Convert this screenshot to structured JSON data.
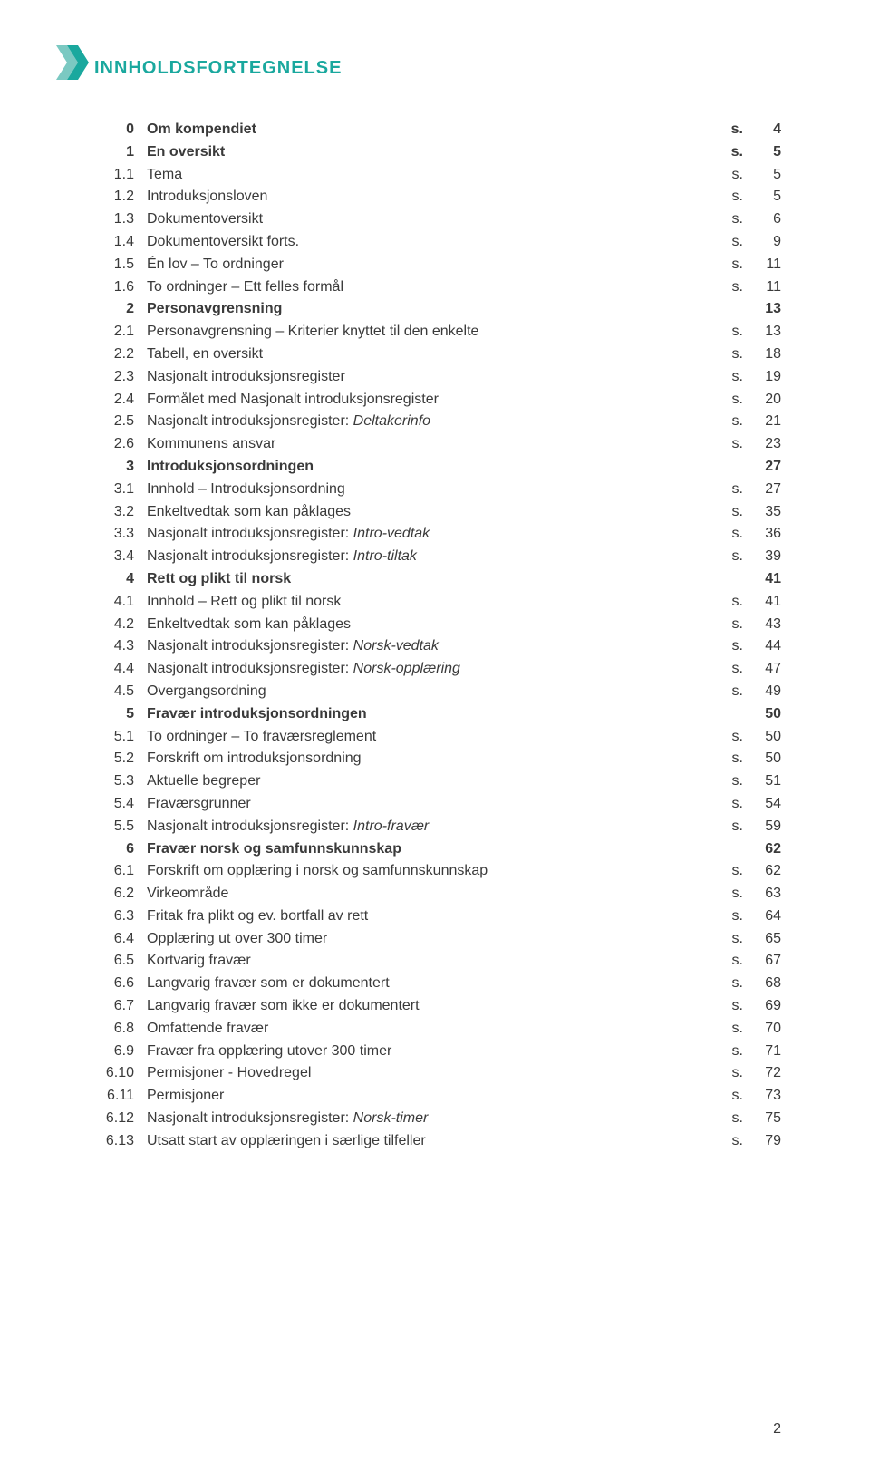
{
  "title": "INNHOLDSFORTEGNELSE",
  "title_color": "#1aa89e",
  "logo_color_1": "#1aa89e",
  "logo_color_2": "#7bc9c2",
  "text_color": "#3a3a3a",
  "page_number": "2",
  "rows": [
    {
      "n": "0",
      "t": "Om kompendiet",
      "s": "s.",
      "p": "4",
      "b": true
    },
    {
      "n": "1",
      "t": "En oversikt",
      "s": "s.",
      "p": "5",
      "b": true
    },
    {
      "n": "1.1",
      "t": "Tema",
      "s": "s.",
      "p": "5"
    },
    {
      "n": "1.2",
      "t": "Introduksjonsloven",
      "s": "s.",
      "p": "5"
    },
    {
      "n": "1.3",
      "t": "Dokumentoversikt",
      "s": "s.",
      "p": "6"
    },
    {
      "n": "1.4",
      "t": "Dokumentoversikt forts.",
      "s": "s.",
      "p": "9"
    },
    {
      "n": "1.5",
      "t": "Én lov – To ordninger",
      "s": "s.",
      "p": "11"
    },
    {
      "n": "1.6",
      "t": "To ordninger – Ett felles formål",
      "s": "s.",
      "p": "11"
    },
    {
      "n": "2",
      "t": "Personavgrensning",
      "s": "",
      "p": "13",
      "b": true
    },
    {
      "n": "2.1",
      "t": "Personavgrensning – Kriterier knyttet til den enkelte",
      "s": "s.",
      "p": "13"
    },
    {
      "n": "2.2",
      "t": "Tabell, en oversikt",
      "s": "s.",
      "p": "18"
    },
    {
      "n": "2.3",
      "t": "Nasjonalt introduksjonsregister",
      "s": "s.",
      "p": "19"
    },
    {
      "n": "2.4",
      "t": "Formålet med Nasjonalt introduksjonsregister",
      "s": "s.",
      "p": "20"
    },
    {
      "n": "2.5",
      "t": "Nasjonalt introduksjonsregister: ",
      "it": "Deltakerinfo",
      "s": "s.",
      "p": "21"
    },
    {
      "n": "2.6",
      "t": "Kommunens ansvar",
      "s": "s.",
      "p": "23"
    },
    {
      "n": "3",
      "t": "Introduksjonsordningen",
      "s": "",
      "p": "27",
      "b": true
    },
    {
      "n": "3.1",
      "t": "Innhold – Introduksjonsordning",
      "s": "s.",
      "p": "27"
    },
    {
      "n": "3.2",
      "t": "Enkeltvedtak som kan påklages",
      "s": "s.",
      "p": "35"
    },
    {
      "n": "3.3",
      "t": "Nasjonalt introduksjonsregister: ",
      "it": "Intro-vedtak",
      "s": "s.",
      "p": "36"
    },
    {
      "n": "3.4",
      "t": "Nasjonalt introduksjonsregister: ",
      "it": "Intro-tiltak",
      "s": "s.",
      "p": "39"
    },
    {
      "n": "4",
      "t": "Rett og plikt til norsk",
      "s": "",
      "p": "41",
      "b": true
    },
    {
      "n": "4.1",
      "t": "Innhold – Rett og plikt til norsk",
      "s": "s.",
      "p": "41"
    },
    {
      "n": "4.2",
      "t": "Enkeltvedtak som kan påklages",
      "s": "s.",
      "p": "43"
    },
    {
      "n": "4.3",
      "t": "Nasjonalt introduksjonsregister: ",
      "it": "Norsk-vedtak",
      "s": "s.",
      "p": "44"
    },
    {
      "n": "4.4",
      "t": "Nasjonalt introduksjonsregister: ",
      "it": "Norsk-opplæring",
      "s": "s.",
      "p": "47"
    },
    {
      "n": "4.5",
      "t": "Overgangsordning",
      "s": "s.",
      "p": "49"
    },
    {
      "n": "5",
      "t": "Fravær introduksjonsordningen",
      "s": "",
      "p": "50",
      "b": true
    },
    {
      "n": "5.1",
      "t": "To ordninger – To fraværsreglement",
      "s": "s.",
      "p": "50"
    },
    {
      "n": "5.2",
      "t": "Forskrift om introduksjonsordning",
      "s": "s.",
      "p": "50"
    },
    {
      "n": "5.3",
      "t": "Aktuelle begreper",
      "s": "s.",
      "p": "51"
    },
    {
      "n": "5.4",
      "t": "Fraværsgrunner",
      "s": "s.",
      "p": "54"
    },
    {
      "n": "5.5",
      "t": "Nasjonalt introduksjonsregister: ",
      "it": "Intro-fravær",
      "s": "s.",
      "p": "59"
    },
    {
      "n": "6",
      "t": "Fravær norsk og samfunnskunnskap",
      "s": "",
      "p": "62",
      "b": true
    },
    {
      "n": "6.1",
      "t": "Forskrift om opplæring i norsk og samfunnskunnskap",
      "s": "s.",
      "p": "62"
    },
    {
      "n": "6.2",
      "t": "Virkeområde",
      "s": "s.",
      "p": "63"
    },
    {
      "n": "6.3",
      "t": "Fritak fra plikt og ev. bortfall av rett",
      "s": "s.",
      "p": "64"
    },
    {
      "n": "6.4",
      "t": "Opplæring ut over 300 timer",
      "s": "s.",
      "p": "65"
    },
    {
      "n": "6.5",
      "t": "Kortvarig fravær",
      "s": "s.",
      "p": "67"
    },
    {
      "n": "6.6",
      "t": "Langvarig fravær som er dokumentert",
      "s": "s.",
      "p": "68"
    },
    {
      "n": "6.7",
      "t": "Langvarig fravær som ikke er dokumentert",
      "s": "s.",
      "p": "69"
    },
    {
      "n": "6.8",
      "t": "Omfattende fravær",
      "s": "s.",
      "p": "70"
    },
    {
      "n": "6.9",
      "t": "Fravær fra opplæring utover 300 timer",
      "s": "s.",
      "p": "71"
    },
    {
      "n": "6.10",
      "t": "Permisjoner - Hovedregel",
      "s": "s.",
      "p": "72"
    },
    {
      "n": "6.11",
      "t": "Permisjoner",
      "s": "s.",
      "p": "73"
    },
    {
      "n": "6.12",
      "t": "Nasjonalt introduksjonsregister: ",
      "it": "Norsk-timer",
      "s": "s.",
      "p": "75"
    },
    {
      "n": "6.13",
      "t": "Utsatt start av opplæringen i særlige tilfeller",
      "s": "s.",
      "p": "79"
    }
  ]
}
